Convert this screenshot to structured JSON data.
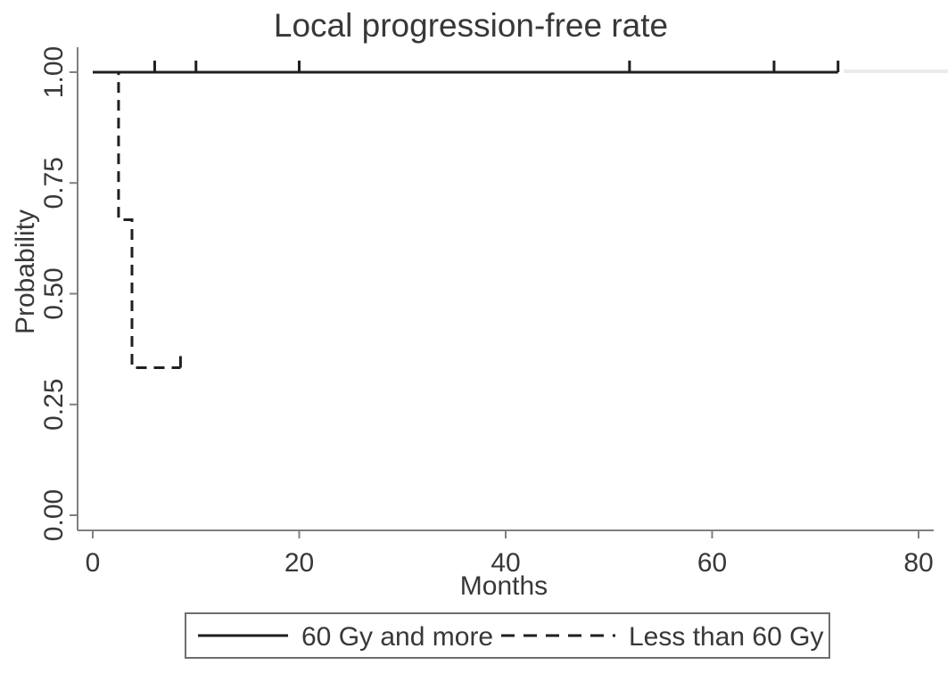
{
  "title": "Local progression-free rate",
  "axes": {
    "x": {
      "label": "Months",
      "tick_values": [
        0,
        20,
        40,
        60,
        80
      ],
      "tick_labels": [
        "0",
        "20",
        "40",
        "60",
        "80"
      ],
      "range": [
        0,
        80
      ]
    },
    "y": {
      "label": "Probability",
      "tick_values": [
        0,
        0.25,
        0.5,
        0.75,
        1.0
      ],
      "tick_labels": [
        "0.00",
        "0.25",
        "0.50",
        "0.75",
        "1.00"
      ],
      "range": [
        0,
        1
      ]
    }
  },
  "legend": {
    "items": [
      {
        "label": "60 Gy and more",
        "line_style": "solid"
      },
      {
        "label": "Less than 60 Gy",
        "line_style": "dashed"
      }
    ],
    "position": "bottom"
  },
  "colors": {
    "curve": "#1f1f1f",
    "axis": "#7f7f7f",
    "text": "#383838",
    "legend_border": "#6e6e6e",
    "faint_artifact": "#ebebeb",
    "background": "#ffffff"
  },
  "chart_data": {
    "type": "line",
    "subtype": "kaplan-meier-step",
    "title": "Local progression-free rate",
    "xlabel": "Months",
    "ylabel": "Probability",
    "xlim": [
      0,
      80
    ],
    "ylim": [
      0,
      1
    ],
    "grid": false,
    "legend_position": "bottom",
    "series": [
      {
        "name": "60 Gy and more",
        "style": "solid",
        "steps": [
          [
            0,
            1.0
          ],
          [
            72.2,
            1.0
          ]
        ],
        "censor_marks": [
          [
            6,
            1.0
          ],
          [
            10,
            1.0
          ],
          [
            20,
            1.0
          ],
          [
            52,
            1.0
          ],
          [
            66,
            1.0
          ],
          [
            72.2,
            1.0
          ]
        ]
      },
      {
        "name": "Less than 60 Gy",
        "style": "dashed",
        "steps": [
          [
            0,
            1.0
          ],
          [
            2.5,
            1.0
          ],
          [
            2.5,
            0.667
          ],
          [
            3.8,
            0.667
          ],
          [
            3.8,
            0.333
          ],
          [
            8.5,
            0.333
          ]
        ],
        "censor_marks": [
          [
            8.5,
            0.333
          ]
        ]
      }
    ]
  }
}
